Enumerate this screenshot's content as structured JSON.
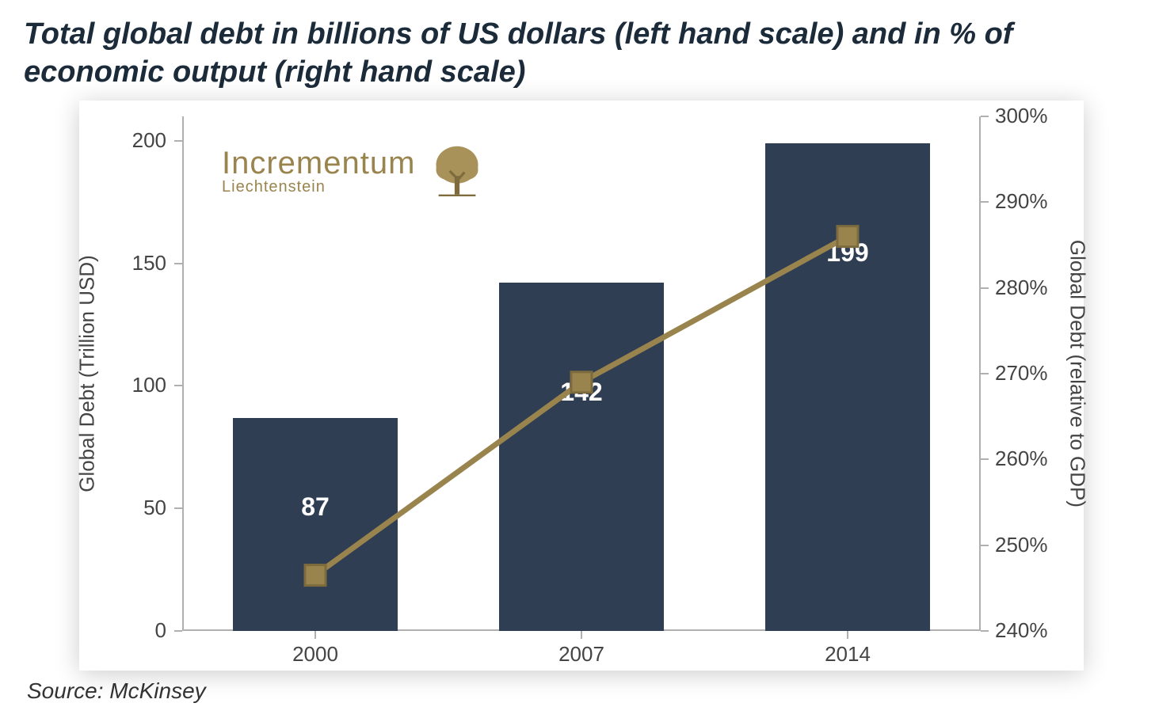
{
  "title": "Total global debt in billions of US dollars (left hand scale) and in % of economic output (right hand scale)",
  "source": "Source: McKinsey",
  "logo": {
    "brand": "Incrementum",
    "sub": "Liechtenstein",
    "color": "#9a844e"
  },
  "chart": {
    "type": "bar+line-dual-axis",
    "background_color": "#ffffff",
    "shadow_color": "rgba(0,0,0,0.20)",
    "axis_color": "#b0b0b0",
    "tick_font_size": 26,
    "tick_font_color": "#444444",
    "categories": [
      "2000",
      "2007",
      "2014"
    ],
    "left_axis": {
      "label": "Global Debt (Trillion USD)",
      "min": 0,
      "max": 210,
      "ticks": [
        0,
        50,
        100,
        150,
        200
      ],
      "label_fontsize": 26
    },
    "right_axis": {
      "label": "Global Debt (relative to GDP)",
      "min": 240,
      "max": 300,
      "ticks": [
        240,
        250,
        260,
        270,
        280,
        290,
        300
      ],
      "tick_suffix": "%",
      "label_fontsize": 26
    },
    "bars": {
      "values": [
        87,
        142,
        199
      ],
      "labels": [
        "87",
        "142",
        "199"
      ],
      "color": "#2f3e52",
      "label_color": "#ffffff",
      "label_fontsize": 32,
      "width_fraction": 0.62
    },
    "line": {
      "values": [
        246.5,
        269,
        286
      ],
      "color": "#9a844e",
      "line_width": 7,
      "marker_size": 26,
      "marker_shape": "square",
      "marker_fill": "#9a844e",
      "marker_stroke": "#7e6b3d"
    }
  }
}
